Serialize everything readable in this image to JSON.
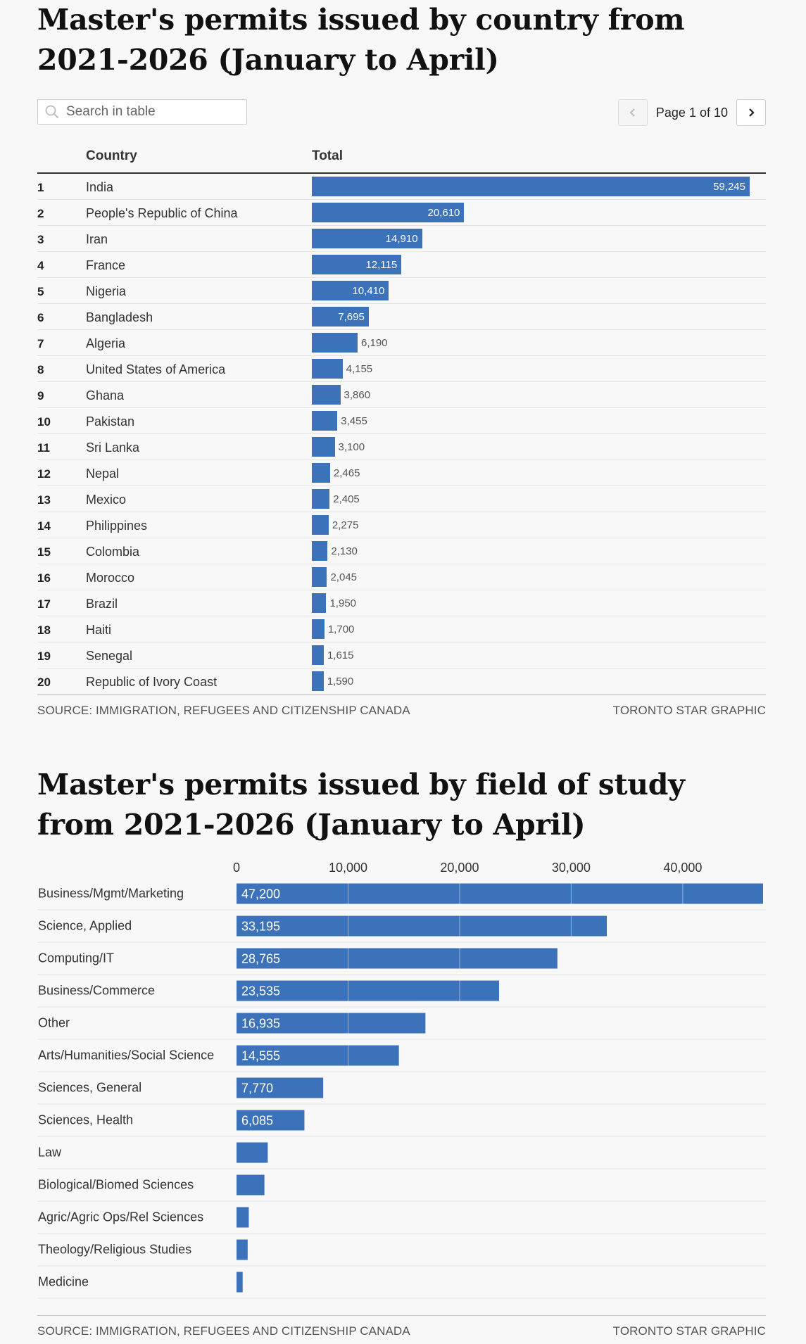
{
  "table_chart": {
    "title": "Master's permits issued by country from 2021-2026 (January to April)",
    "search": {
      "placeholder": "Search in table",
      "value": ""
    },
    "pager": {
      "text": "Page 1 of 10"
    },
    "columns": {
      "country": "Country",
      "total": "Total"
    },
    "source": "SOURCE: IMMIGRATION, REFUGEES AND CITIZENSHIP CANADA",
    "credit": "TORONTO STAR GRAPHIC"
  },
  "bar_chart": {
    "source": "SOURCE: IMMIGRATION, REFUGEES AND CITIZENSHIP CANADA",
    "credit": "TORONTO STAR GRAPHIC"
  },
  "colors": {
    "bar": "#3b72b9",
    "gridline": "#e2e2e2"
  },
  "chart_data": [
    {
      "type": "table",
      "title": "Master's permits issued by country from 2021-2026 (January to April)",
      "columns": [
        "",
        "Country",
        "Total"
      ],
      "rows": [
        {
          "rank": "1",
          "country": "India",
          "total": 59245,
          "label": "59,245"
        },
        {
          "rank": "2",
          "country": "People's Republic of China",
          "total": 20610,
          "label": "20,610"
        },
        {
          "rank": "3",
          "country": "Iran",
          "total": 14910,
          "label": "14,910"
        },
        {
          "rank": "4",
          "country": "France",
          "total": 12115,
          "label": "12,115"
        },
        {
          "rank": "5",
          "country": "Nigeria",
          "total": 10410,
          "label": "10,410"
        },
        {
          "rank": "6",
          "country": "Bangladesh",
          "total": 7695,
          "label": "7,695"
        },
        {
          "rank": "7",
          "country": "Algeria",
          "total": 6190,
          "label": "6,190"
        },
        {
          "rank": "8",
          "country": "United States of America",
          "total": 4155,
          "label": "4,155"
        },
        {
          "rank": "9",
          "country": "Ghana",
          "total": 3860,
          "label": "3,860"
        },
        {
          "rank": "10",
          "country": "Pakistan",
          "total": 3455,
          "label": "3,455"
        },
        {
          "rank": "11",
          "country": "Sri Lanka",
          "total": 3100,
          "label": "3,100"
        },
        {
          "rank": "12",
          "country": "Nepal",
          "total": 2465,
          "label": "2,465"
        },
        {
          "rank": "13",
          "country": "Mexico",
          "total": 2405,
          "label": "2,405"
        },
        {
          "rank": "14",
          "country": "Philippines",
          "total": 2275,
          "label": "2,275"
        },
        {
          "rank": "15",
          "country": "Colombia",
          "total": 2130,
          "label": "2,130"
        },
        {
          "rank": "16",
          "country": "Morocco",
          "total": 2045,
          "label": "2,045"
        },
        {
          "rank": "17",
          "country": "Brazil",
          "total": 1950,
          "label": "1,950"
        },
        {
          "rank": "18",
          "country": "Haiti",
          "total": 1700,
          "label": "1,700"
        },
        {
          "rank": "19",
          "country": "Senegal",
          "total": 1615,
          "label": "1,615"
        },
        {
          "rank": "20",
          "country": "Republic of Ivory Coast",
          "total": 1590,
          "label": "1,590"
        }
      ],
      "xlim": [
        0,
        59245
      ]
    },
    {
      "type": "bar",
      "orientation": "horizontal",
      "title": "Master's permits issued by field of study from 2021-2026 (January to April)",
      "categories": [
        "Business/Mgmt/Marketing",
        "Science, Applied",
        "Computing/IT",
        "Business/Commerce",
        "Other",
        "Arts/Humanities/Social Science",
        "Sciences, General",
        "Sciences, Health",
        "Law",
        "Biological/Biomed Sciences",
        "Agric/Agric Ops/Rel Sciences",
        "Theology/Religious Studies",
        "Medicine"
      ],
      "values": [
        47200,
        33195,
        28765,
        23535,
        16935,
        14555,
        7770,
        6085,
        2800,
        2500,
        1100,
        1000,
        550
      ],
      "labels": [
        "47,200",
        "33,195",
        "28,765",
        "23,535",
        "16,935",
        "14,555",
        "7,770",
        "6,085",
        "",
        "",
        "",
        "",
        ""
      ],
      "xticks": [
        0,
        10000,
        20000,
        30000,
        40000
      ],
      "xtick_labels": [
        "0",
        "10,000",
        "20,000",
        "30,000",
        "40,000"
      ],
      "xlim": [
        0,
        47200
      ],
      "grid": true
    }
  ]
}
